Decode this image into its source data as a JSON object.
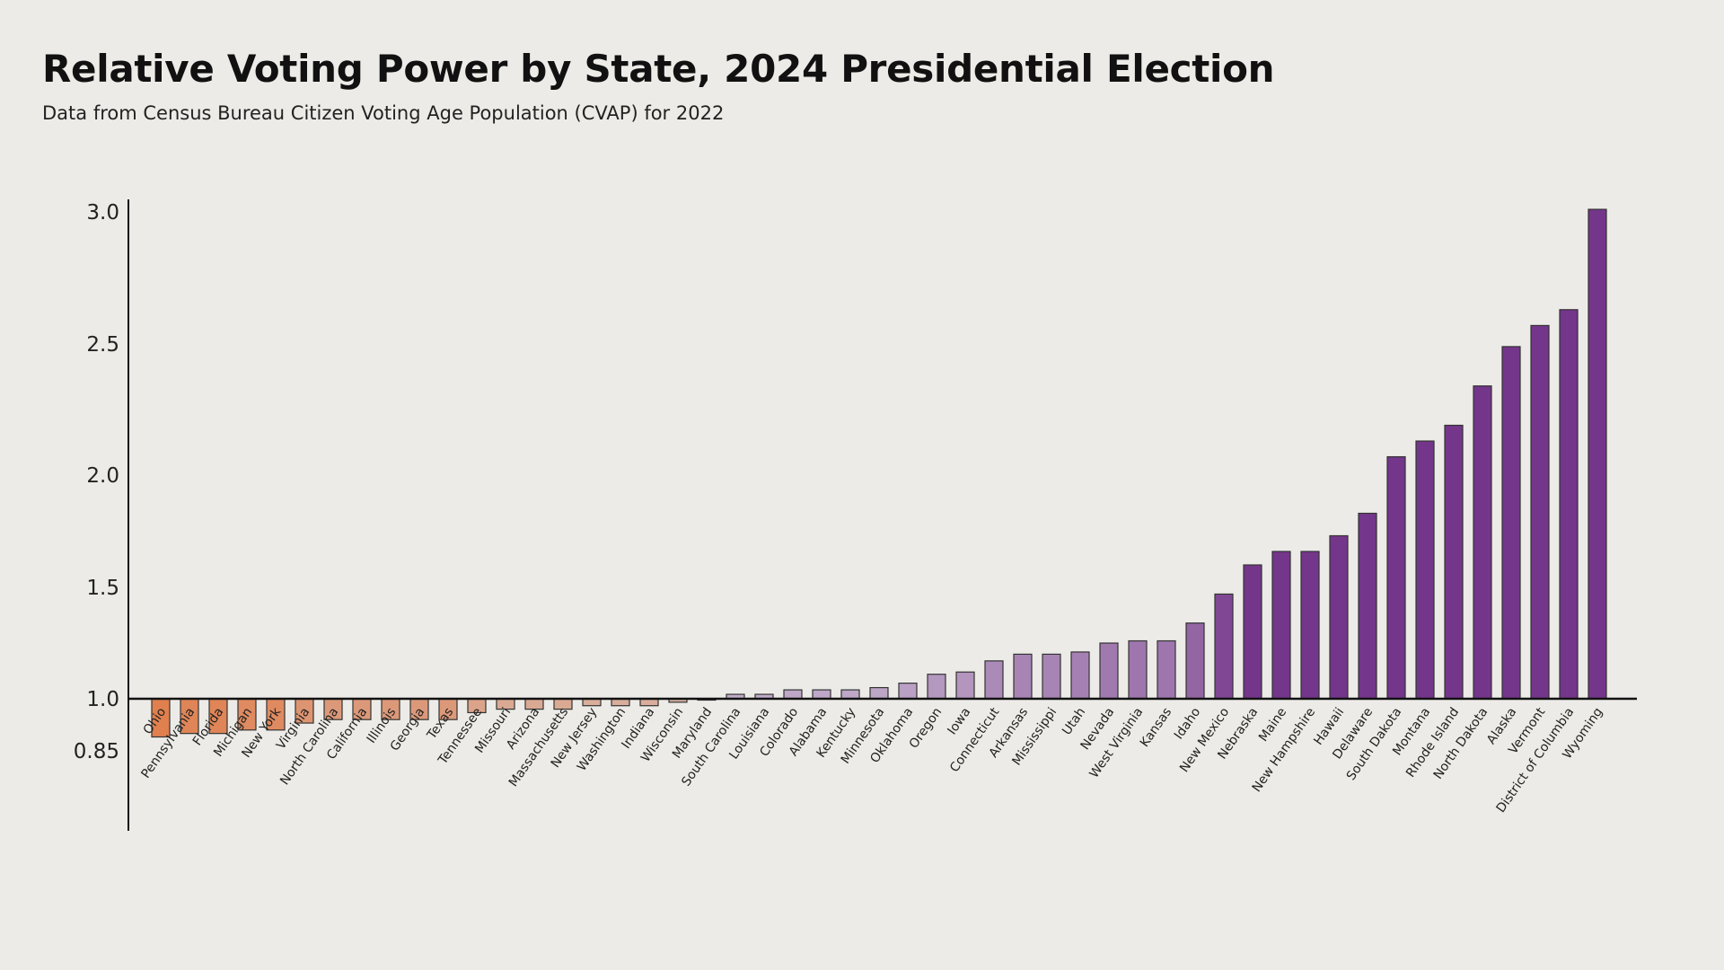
{
  "title": "Relative Voting Power by State, 2024 Presidential Election",
  "subtitle": "Data from Census Bureau Citizen Voting Age Population (CVAP) for 2022",
  "chart_data": {
    "type": "bar",
    "title": "Relative Voting Power by State, 2024 Presidential Election",
    "subtitle": "Data from Census Bureau Citizen Voting Age Population (CVAP) for 2022",
    "xlabel": "",
    "ylabel": "",
    "baseline": 1.0,
    "y_ticks": [
      3.0,
      2.5,
      2.0,
      1.5,
      1.0,
      0.85
    ],
    "y_tick_labels": [
      "3.0",
      "2.5",
      "2.0",
      "1.5",
      "1.0",
      "0.85"
    ],
    "ylim": [
      0.85,
      3.0
    ],
    "grid": false,
    "colors": {
      "below": "#e0804f",
      "near_one_below": "#d8b8ac",
      "near_one_above": "#c4b0cc",
      "above": "#74368a"
    },
    "categories": [
      "Ohio",
      "Pennsylvania",
      "Florida",
      "Michigan",
      "New York",
      "Virginia",
      "North Carolina",
      "California",
      "Illinois",
      "Georgia",
      "Texas",
      "Tennessee",
      "Missouri",
      "Arizona",
      "Massachusetts",
      "New Jersey",
      "Washington",
      "Indiana",
      "Wisconsin",
      "Maryland",
      "South Carolina",
      "Louisiana",
      "Colorado",
      "Alabama",
      "Kentucky",
      "Minnesota",
      "Oklahoma",
      "Oregon",
      "Iowa",
      "Connecticut",
      "Arkansas",
      "Mississippi",
      "Utah",
      "Nevada",
      "West Virginia",
      "Kansas",
      "Idaho",
      "New Mexico",
      "Nebraska",
      "Maine",
      "New Hampshire",
      "Hawaii",
      "Delaware",
      "South Dakota",
      "Montana",
      "Rhode Island",
      "North Dakota",
      "Alaska",
      "Vermont",
      "District of Columbia",
      "Wyoming"
    ],
    "values": [
      0.89,
      0.9,
      0.9,
      0.91,
      0.91,
      0.93,
      0.94,
      0.94,
      0.94,
      0.94,
      0.94,
      0.96,
      0.97,
      0.97,
      0.97,
      0.98,
      0.98,
      0.98,
      0.99,
      1.0,
      1.02,
      1.02,
      1.04,
      1.04,
      1.04,
      1.05,
      1.07,
      1.11,
      1.12,
      1.17,
      1.2,
      1.2,
      1.21,
      1.25,
      1.26,
      1.26,
      1.34,
      1.47,
      1.6,
      1.66,
      1.66,
      1.73,
      1.83,
      2.07,
      2.13,
      2.19,
      2.34,
      2.49,
      2.57,
      2.63,
      3.01
    ]
  }
}
